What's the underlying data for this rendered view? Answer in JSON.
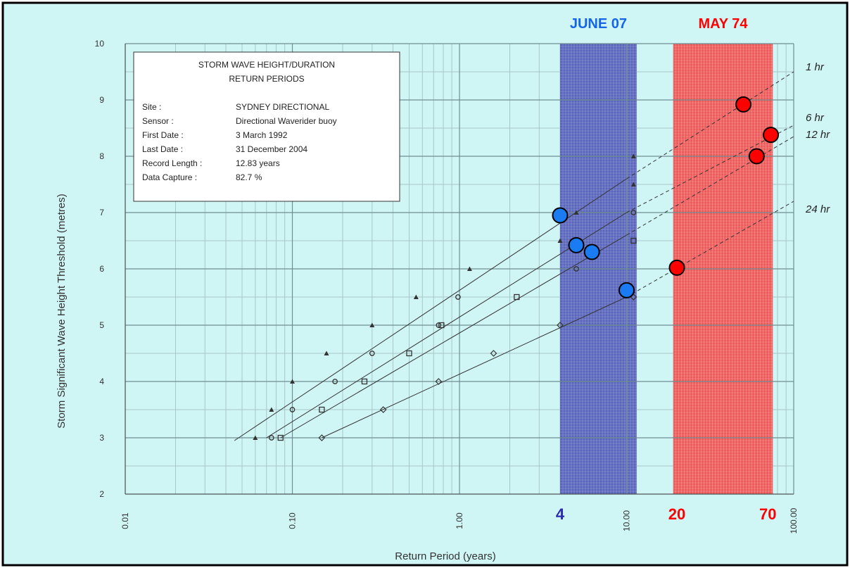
{
  "chart_data": {
    "type": "scatter",
    "x_scale": "log",
    "xlim": [
      0.01,
      100
    ],
    "ylim": [
      2,
      10
    ],
    "xlabel": "Return Period (years)",
    "ylabel": "Storm Significant Wave Height Threshold (metres)",
    "x_ticks": [
      "0.01",
      "0.10",
      "1.00",
      "10.00",
      "100.00"
    ],
    "y_ticks": [
      "2",
      "3",
      "4",
      "5",
      "6",
      "7",
      "8",
      "9",
      "10"
    ],
    "grid": true,
    "background_color": "#cff5f5",
    "info_box": {
      "title_lines": [
        "STORM WAVE HEIGHT/DURATION",
        "RETURN PERIODS"
      ],
      "rows": [
        {
          "label": "Site :",
          "value": "SYDNEY DIRECTIONAL"
        },
        {
          "label": "Sensor :",
          "value": "Directional Waverider buoy"
        },
        {
          "label": "First Date :",
          "value": "3 March 1992"
        },
        {
          "label": "Last Date :",
          "value": "31 December 2004"
        },
        {
          "label": "Record Length :",
          "value": "12.83 years"
        },
        {
          "label": "Data Capture :",
          "value": "82.7 %"
        }
      ]
    },
    "bands": [
      {
        "label": "JUNE 07",
        "x_range": [
          4,
          11.5
        ],
        "color": "#4b55b5",
        "label_color": "#1565e8"
      },
      {
        "label": "MAY 74",
        "x_range": [
          19,
          75
        ],
        "color": "#f24a4a",
        "label_color": "#ff0000"
      }
    ],
    "annotations": [
      {
        "text": "4",
        "x": 4,
        "color": "#2b2bb0"
      },
      {
        "text": "20",
        "x": 20,
        "color": "#ff0000"
      },
      {
        "text": "70",
        "x": 70,
        "color": "#ff0000"
      }
    ],
    "series": [
      {
        "name": "1 hr",
        "marker": "triangle",
        "points": [
          [
            0.06,
            3.0
          ],
          [
            0.075,
            3.5
          ],
          [
            0.1,
            4.0
          ],
          [
            0.16,
            4.5
          ],
          [
            0.3,
            5.0
          ],
          [
            0.55,
            5.5
          ],
          [
            1.15,
            6.0
          ],
          [
            4.0,
            6.5
          ],
          [
            5.0,
            7.0
          ],
          [
            11.0,
            7.5
          ],
          [
            11.0,
            8.0
          ]
        ],
        "fit": [
          [
            0.045,
            2.95
          ],
          [
            10.0,
            7.6
          ]
        ],
        "extrapolation": [
          [
            10.0,
            7.6
          ],
          [
            100.0,
            9.5
          ]
        ]
      },
      {
        "name": "6 hr",
        "marker": "circle",
        "points": [
          [
            0.075,
            3.0
          ],
          [
            0.1,
            3.5
          ],
          [
            0.18,
            4.0
          ],
          [
            0.3,
            4.5
          ],
          [
            0.75,
            5.0
          ],
          [
            0.98,
            5.5
          ],
          [
            5.0,
            6.0
          ],
          [
            11.0,
            7.0
          ]
        ],
        "fit": [
          [
            0.07,
            3.0
          ],
          [
            10.0,
            7.0
          ]
        ],
        "extrapolation": [
          [
            10.0,
            7.0
          ],
          [
            100.0,
            8.55
          ]
        ]
      },
      {
        "name": "12 hr",
        "marker": "square",
        "points": [
          [
            0.085,
            3.0
          ],
          [
            0.15,
            3.5
          ],
          [
            0.27,
            4.0
          ],
          [
            0.5,
            4.5
          ],
          [
            0.78,
            5.0
          ],
          [
            2.2,
            5.5
          ],
          [
            11.0,
            6.5
          ]
        ],
        "fit": [
          [
            0.085,
            3.0
          ],
          [
            10.0,
            6.6
          ]
        ],
        "extrapolation": [
          [
            10.0,
            6.6
          ],
          [
            100.0,
            8.35
          ]
        ]
      },
      {
        "name": "24 hr",
        "marker": "diamond",
        "points": [
          [
            0.15,
            3.0
          ],
          [
            0.35,
            3.5
          ],
          [
            0.75,
            4.0
          ],
          [
            1.6,
            4.5
          ],
          [
            4.0,
            5.0
          ],
          [
            11.0,
            5.5
          ]
        ],
        "fit": [
          [
            0.15,
            3.0
          ],
          [
            10.0,
            5.5
          ]
        ],
        "extrapolation": [
          [
            10.0,
            5.5
          ],
          [
            100.0,
            7.2
          ]
        ]
      }
    ],
    "events": [
      {
        "name": "JUNE 07",
        "color": "#1a7bf2",
        "points": [
          [
            4.0,
            6.95
          ],
          [
            5.0,
            6.42
          ],
          [
            6.2,
            6.3
          ],
          [
            10.0,
            5.62
          ]
        ]
      },
      {
        "name": "MAY 74",
        "color": "#ff0000",
        "points": [
          [
            20.0,
            6.02
          ],
          [
            50.0,
            8.92
          ],
          [
            60.0,
            8.0
          ],
          [
            73.0,
            8.38
          ]
        ]
      }
    ]
  }
}
